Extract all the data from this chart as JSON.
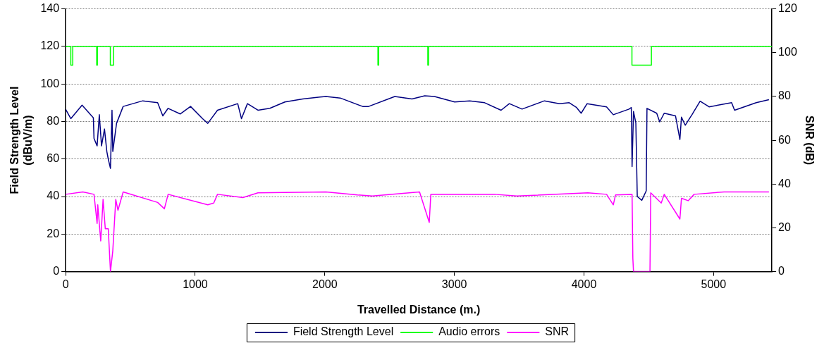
{
  "chart_data": {
    "type": "line",
    "xlabel": "Travelled Distance (m.)",
    "ylabel": "Field Strength Level\n(dBuV/m)",
    "y2label": "SNR (dB)",
    "xlim": [
      0,
      5450
    ],
    "xticks": [
      0,
      1000,
      2000,
      3000,
      4000,
      5000
    ],
    "ylim": [
      0,
      140
    ],
    "yticks": [
      0,
      20,
      40,
      60,
      80,
      100,
      120,
      140
    ],
    "y2lim": [
      0,
      120
    ],
    "y2ticks": [
      0,
      20,
      40,
      60,
      80,
      100,
      120
    ],
    "grid": "y",
    "legend": "bottom",
    "marker": "none",
    "line_style": "solid",
    "series": [
      {
        "name": "Field Strength Level",
        "color": "#000080",
        "x": [
          0,
          40,
          127,
          214,
          219,
          243,
          260,
          277,
          300,
          318,
          329,
          346,
          358,
          364,
          393,
          444,
          595,
          710,
          750,
          791,
          884,
          964,
          1057,
          1097,
          1172,
          1328,
          1357,
          1403,
          1484,
          1576,
          1692,
          1830,
          1963,
          2009,
          2119,
          2292,
          2338,
          2540,
          2673,
          2771,
          2846,
          3002,
          3118,
          3233,
          3360,
          3424,
          3522,
          3695,
          3811,
          3886,
          3943,
          3978,
          4024,
          4174,
          4226,
          4348,
          4365,
          4371,
          4382,
          4400,
          4411,
          4446,
          4480,
          4486,
          4561,
          4584,
          4619,
          4706,
          4740,
          4752,
          4781,
          4833,
          4896,
          4965,
          5139,
          5162,
          5329,
          5427
        ],
        "values": [
          86.5,
          81.5,
          88.7,
          82,
          71,
          67,
          83.6,
          67,
          76,
          64,
          60,
          55,
          86,
          64,
          79,
          88,
          91,
          90,
          83,
          87,
          84,
          88,
          81.5,
          79,
          86,
          89.5,
          81.5,
          89.5,
          86,
          87,
          90.4,
          92,
          93,
          93.3,
          92.5,
          88,
          88,
          93.3,
          92,
          93.7,
          93.3,
          90.4,
          91,
          90,
          86,
          89.5,
          86.6,
          91,
          89.5,
          90,
          87.4,
          84.4,
          89.5,
          87.8,
          83.6,
          86.6,
          87.4,
          56,
          85.3,
          79.3,
          40,
          38,
          43,
          87,
          84.4,
          79.8,
          84.4,
          83,
          70.4,
          82.3,
          78,
          83.6,
          90.8,
          87.8,
          90,
          86,
          90,
          91.6
        ]
      },
      {
        "name": "Audio errors",
        "color": "#00ff00",
        "x": [
          0,
          40,
          40,
          55,
          55,
          240,
          240,
          245,
          245,
          345,
          345,
          370,
          370,
          2410,
          2410,
          2415,
          2415,
          2795,
          2795,
          2800,
          2800,
          4370,
          4370,
          4520,
          4520,
          5450
        ],
        "values": [
          120,
          120,
          110,
          110,
          120,
          120,
          110,
          110,
          120,
          120,
          110,
          110,
          120,
          120,
          110,
          110,
          120,
          120,
          110,
          110,
          120,
          120,
          110,
          110,
          120,
          120
        ]
      },
      {
        "name": "SNR",
        "color": "#ff00ff",
        "axis": "y2",
        "x": [
          0,
          133,
          219,
          243,
          248,
          271,
          289,
          306,
          329,
          346,
          364,
          387,
          404,
          444,
          710,
          762,
          791,
          1097,
          1143,
          1172,
          1368,
          1484,
          2009,
          2252,
          2367,
          2731,
          2806,
          2818,
          3308,
          3482,
          4030,
          4174,
          4226,
          4243,
          4371,
          4377,
          4382,
          4509,
          4515,
          4596,
          4619,
          4740,
          4752,
          4804,
          4850,
          5081,
          5427
        ],
        "values": [
          35.3,
          36.4,
          35.3,
          22,
          30.5,
          14,
          33,
          19.6,
          19.6,
          0,
          9.5,
          33,
          28,
          36.4,
          31.6,
          28.7,
          35.3,
          30.5,
          31.3,
          35.3,
          33.8,
          36,
          36.4,
          35,
          34.5,
          36.4,
          22.5,
          35.3,
          35.3,
          34.5,
          36,
          35.3,
          30.5,
          35,
          35.3,
          6,
          0,
          0,
          36,
          31.3,
          35.3,
          24,
          33.5,
          32.4,
          35.3,
          36.4,
          36.4
        ]
      }
    ]
  }
}
